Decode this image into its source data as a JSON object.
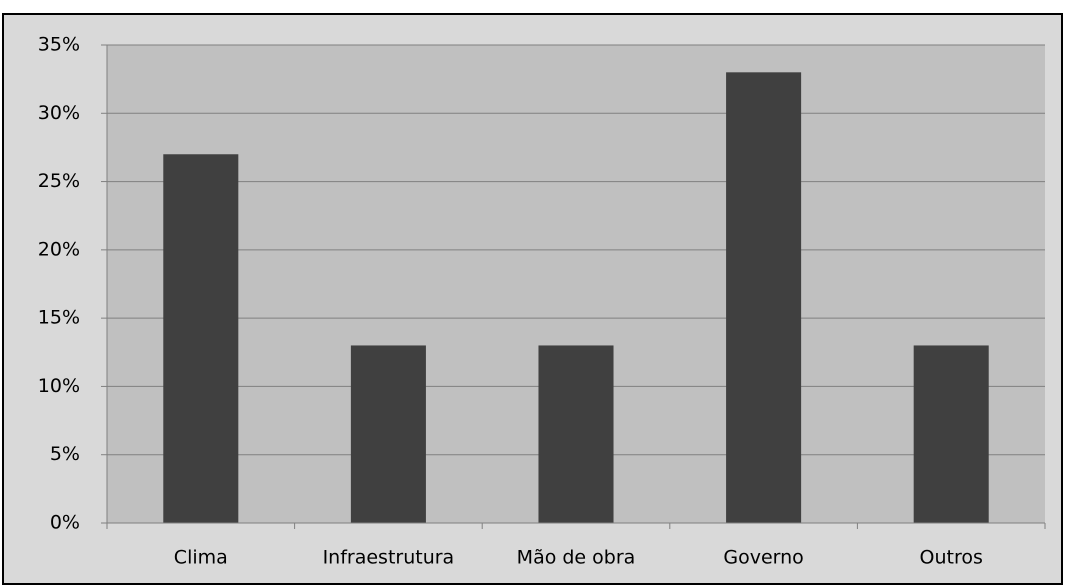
{
  "chart_data": {
    "type": "bar",
    "categories": [
      "Clima",
      "Infraestrutura",
      "Mão de obra",
      "Governo",
      "Outros"
    ],
    "values": [
      27,
      13,
      13,
      33,
      13
    ],
    "color": "#404040",
    "ylim": [
      0,
      35
    ],
    "yticks": [
      {
        "value": 0,
        "label": "0%"
      },
      {
        "value": 5,
        "label": "5%"
      },
      {
        "value": 10,
        "label": "10%"
      },
      {
        "value": 15,
        "label": "15%"
      },
      {
        "value": 20,
        "label": "20%"
      },
      {
        "value": 25,
        "label": "25%"
      },
      {
        "value": 30,
        "label": "30%"
      },
      {
        "value": 35,
        "label": "35%"
      }
    ],
    "grid": true
  }
}
